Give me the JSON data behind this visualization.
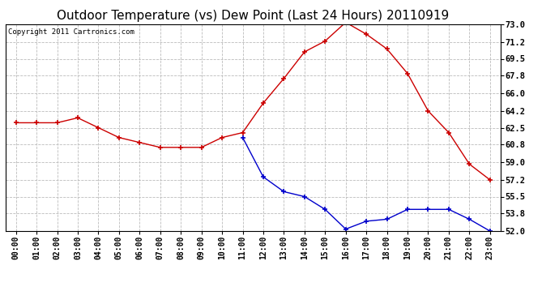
{
  "title": "Outdoor Temperature (vs) Dew Point (Last 24 Hours) 20110919",
  "copyright_text": "Copyright 2011 Cartronics.com",
  "x_labels": [
    "00:00",
    "01:00",
    "02:00",
    "03:00",
    "04:00",
    "05:00",
    "06:00",
    "07:00",
    "08:00",
    "09:00",
    "10:00",
    "11:00",
    "12:00",
    "13:00",
    "14:00",
    "15:00",
    "16:00",
    "17:00",
    "18:00",
    "19:00",
    "20:00",
    "21:00",
    "22:00",
    "23:00"
  ],
  "temp_data": [
    63.0,
    63.0,
    63.0,
    63.5,
    62.5,
    61.5,
    61.0,
    60.5,
    60.5,
    60.5,
    61.5,
    62.0,
    65.0,
    67.5,
    70.2,
    71.3,
    73.2,
    72.0,
    70.5,
    68.0,
    64.2,
    62.0,
    58.8,
    57.2
  ],
  "dew_data": [
    null,
    null,
    null,
    null,
    null,
    null,
    null,
    null,
    null,
    null,
    null,
    61.5,
    57.5,
    56.0,
    55.5,
    54.2,
    52.2,
    53.0,
    53.2,
    54.2,
    54.2,
    54.2,
    53.2,
    52.0
  ],
  "temp_color": "#cc0000",
  "dew_color": "#0000cc",
  "grid_color": "#bbbbbb",
  "background_color": "#ffffff",
  "plot_bg_color": "#ffffff",
  "ylim_min": 52.0,
  "ylim_max": 73.0,
  "yticks": [
    52.0,
    53.8,
    55.5,
    57.2,
    59.0,
    60.8,
    62.5,
    64.2,
    66.0,
    67.8,
    69.5,
    71.2,
    73.0
  ],
  "title_fontsize": 11,
  "copyright_fontsize": 6.5,
  "tick_fontsize": 7.5,
  "xtick_fontsize": 7
}
